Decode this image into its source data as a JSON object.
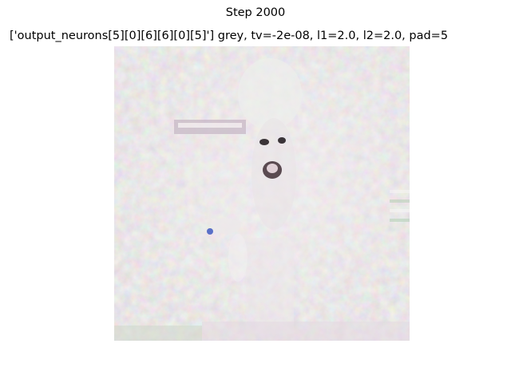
{
  "figure": {
    "title": "Step 2000",
    "subtitle": "['output_neurons[5][0][6][6][0][5]'] grey, tv=-2e-08, l1=2.0, l2=2.0, pad=5",
    "image_description_icon": "neuron-visualization-image",
    "palette": {
      "base": "#d8cfd0",
      "green_tint": "#c4dcc2",
      "pink_tint": "#e6c4d8",
      "highlight": "#f2eef0",
      "dark": "#3a3438",
      "blue_accent": "#5a6fc8"
    }
  }
}
